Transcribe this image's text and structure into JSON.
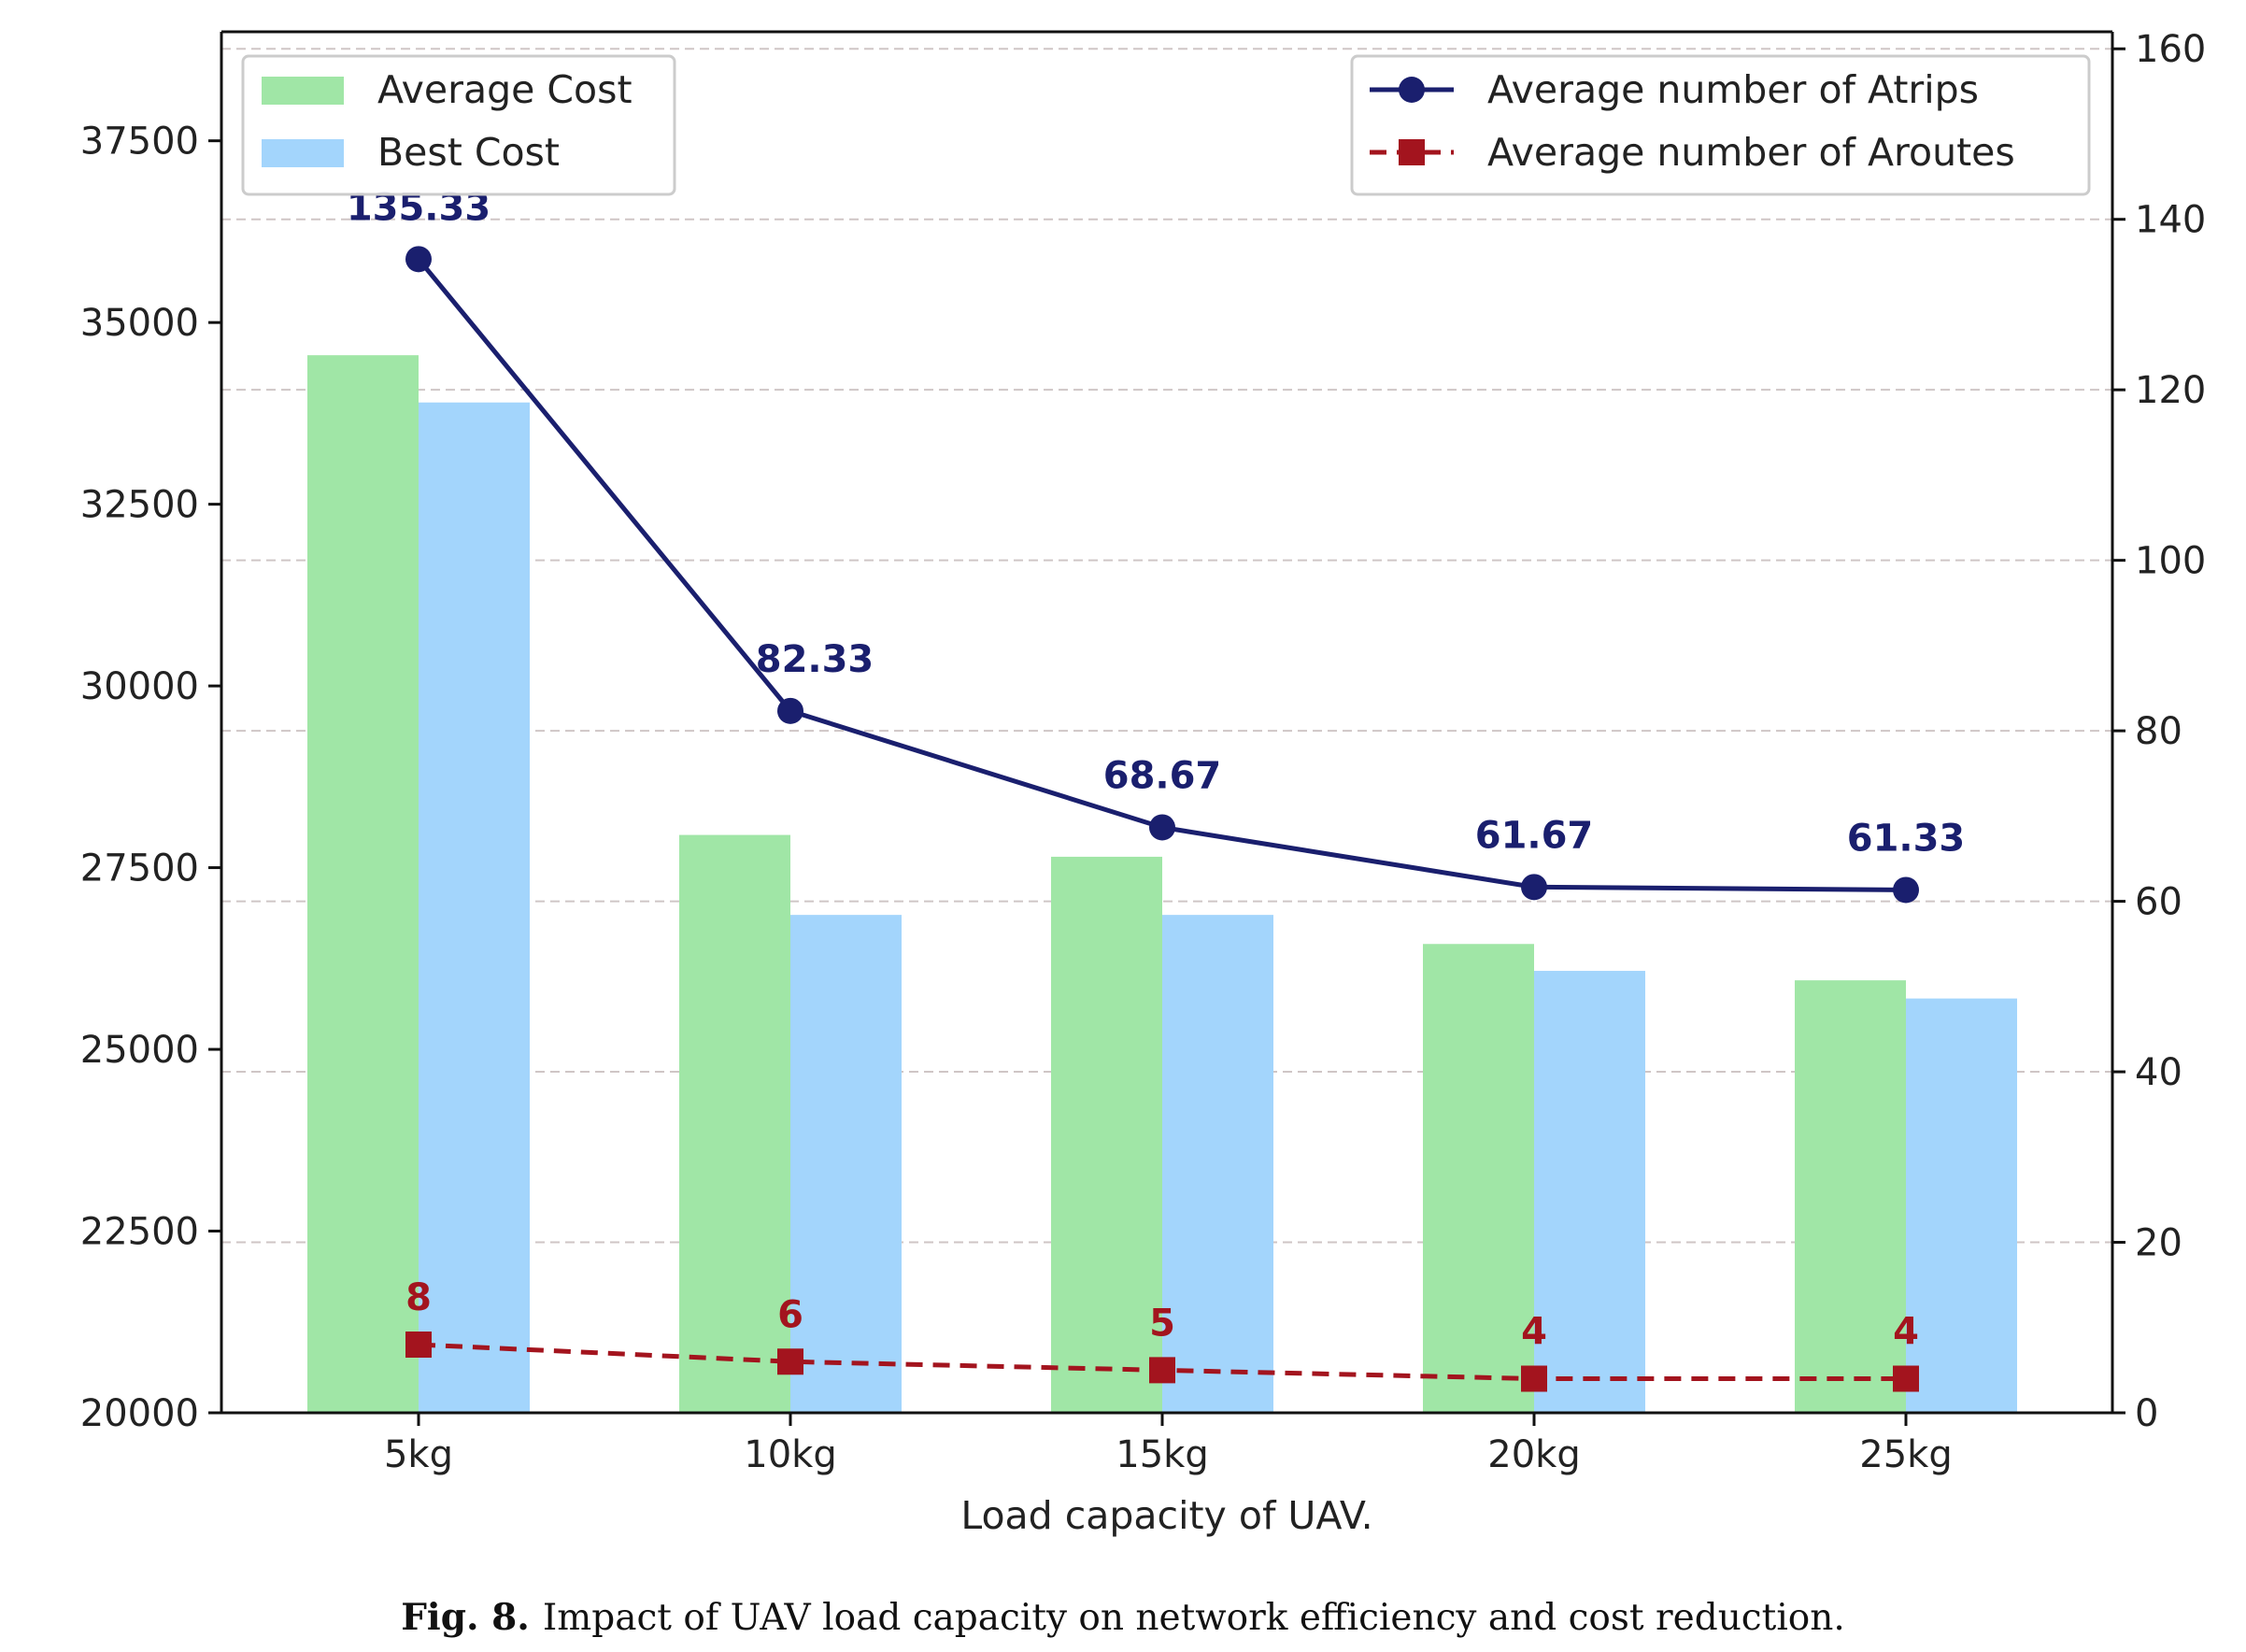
{
  "chart_data": {
    "type": "bar",
    "xlabel": "Load capacity of UAV.",
    "ylabel": "",
    "ylabel_right": "",
    "categories": [
      "5kg",
      "10kg",
      "15kg",
      "20kg",
      "25kg"
    ],
    "bar_series": [
      {
        "name": "Average Cost",
        "color": "#a0e6a6",
        "values": [
          34550,
          27950,
          27650,
          26450,
          25950
        ]
      },
      {
        "name": "Best Cost",
        "color": "#a3d5fc",
        "values": [
          33900,
          26850,
          26850,
          26080,
          25700
        ]
      }
    ],
    "line_series": [
      {
        "name": "Average number of Atrips",
        "color": "#1a1f6e",
        "marker": "circle",
        "style": "solid",
        "values": [
          135.33,
          82.33,
          68.67,
          61.67,
          61.33
        ],
        "labels": [
          "135.33",
          "82.33",
          "68.67",
          "61.67",
          "61.33"
        ]
      },
      {
        "name": "Average number of Aroutes",
        "color": "#a3141e",
        "marker": "square",
        "style": "dashed",
        "values": [
          8,
          6,
          5,
          4,
          4
        ],
        "labels": [
          "8",
          "6",
          "5",
          "4",
          "4"
        ]
      }
    ],
    "ylim": [
      20000,
      39000
    ],
    "yticks": [
      20000,
      22500,
      25000,
      27500,
      30000,
      32500,
      35000,
      37500
    ],
    "ylim_right": [
      0,
      162
    ],
    "yticks_right": [
      0,
      20,
      40,
      60,
      80,
      100,
      120,
      140,
      160
    ],
    "grid": "horizontal dashed (right axis ticks)",
    "legend_left": "top-left",
    "legend_right": "top-right"
  },
  "caption": {
    "label": "Fig. 8.",
    "text": "Impact of UAV load capacity on network efficiency and cost reduction."
  }
}
